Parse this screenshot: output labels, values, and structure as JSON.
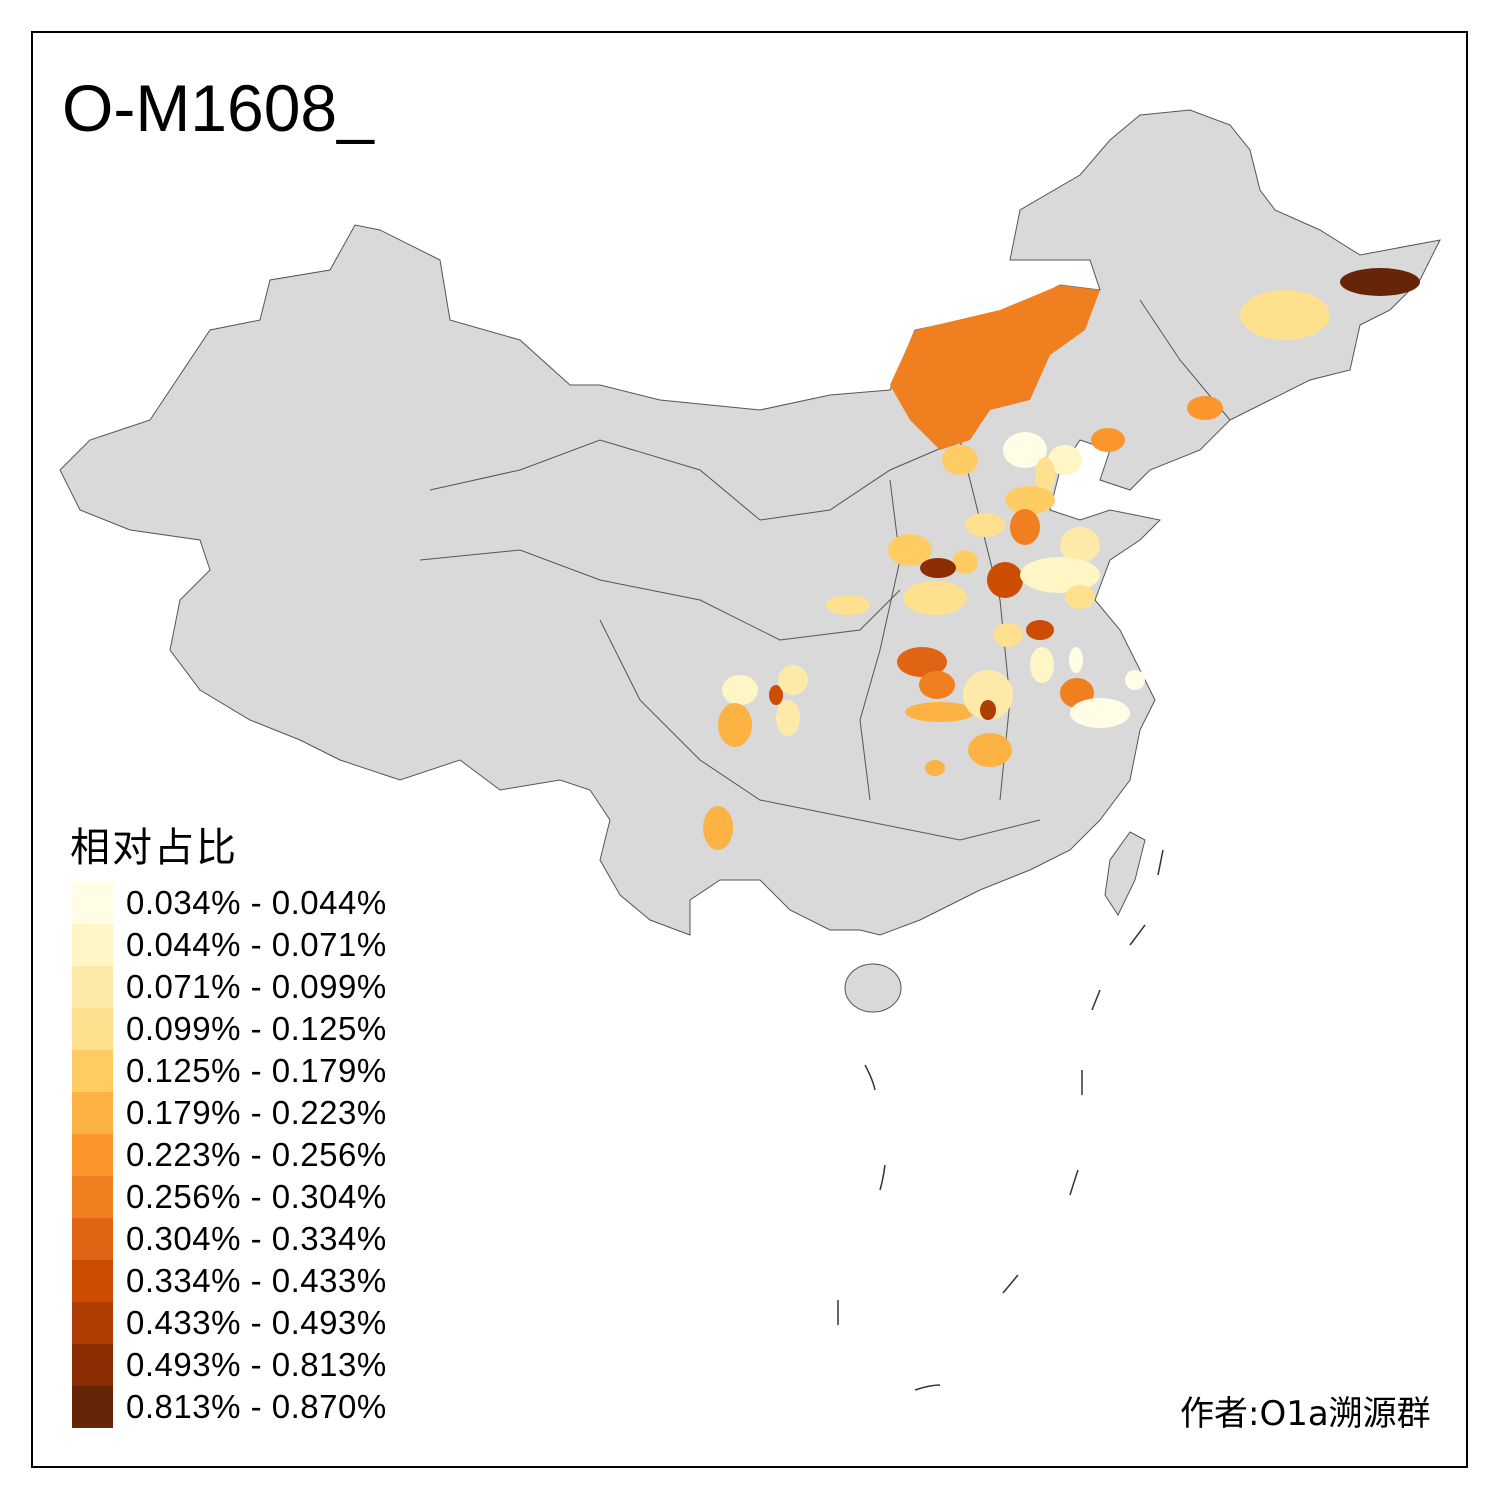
{
  "title": "O-M1608_",
  "legend": {
    "title": "相对占比",
    "classes": [
      {
        "label": "0.034% - 0.044%",
        "color": "#FFFDE6"
      },
      {
        "label": "0.044% - 0.071%",
        "color": "#FFF6C6"
      },
      {
        "label": "0.071% - 0.099%",
        "color": "#FEEAA8"
      },
      {
        "label": "0.099% - 0.125%",
        "color": "#FEE08F"
      },
      {
        "label": "0.125% - 0.179%",
        "color": "#FECC63"
      },
      {
        "label": "0.179% - 0.223%",
        "color": "#FDB244"
      },
      {
        "label": "0.223% - 0.256%",
        "color": "#FA962B"
      },
      {
        "label": "0.256% - 0.304%",
        "color": "#F07F1F"
      },
      {
        "label": "0.304% - 0.334%",
        "color": "#E06414"
      },
      {
        "label": "0.334% - 0.433%",
        "color": "#CC4C02"
      },
      {
        "label": "0.433% - 0.493%",
        "color": "#AE3E03"
      },
      {
        "label": "0.493% - 0.813%",
        "color": "#8C2D04"
      },
      {
        "label": "0.813% - 0.870%",
        "color": "#662506"
      }
    ]
  },
  "no_data_color": "#D9D9D9",
  "author": "作者:O1a溯源群"
}
